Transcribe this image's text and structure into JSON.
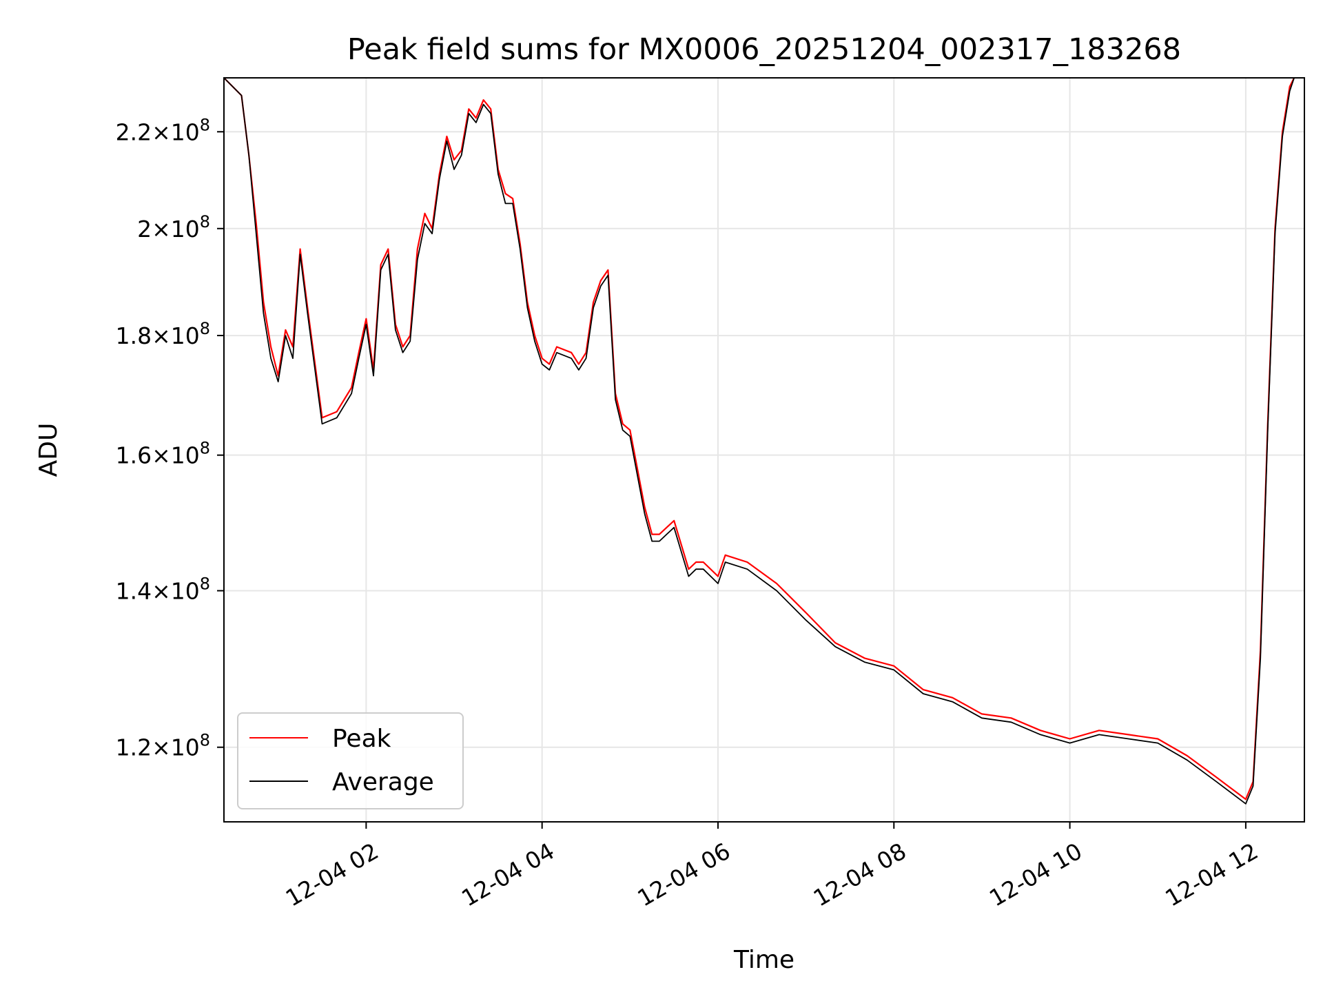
{
  "chart_data": {
    "type": "line",
    "title": "Peak field sums for MX0006_20251204_002317_183268",
    "xlabel": "Time",
    "ylabel": "ADU",
    "x_tick_labels": [
      "12-04 02",
      "12-04 04",
      "12-04 06",
      "12-04 08",
      "12-04 10",
      "12-04 12"
    ],
    "x_ticks": [
      "2025-12-04T02:00",
      "2025-12-04T04:00",
      "2025-12-04T06:00",
      "2025-12-04T08:00",
      "2025-12-04T10:00",
      "2025-12-04T12:00"
    ],
    "xlim": [
      "2025-12-04T00:23",
      "2025-12-04T12:40"
    ],
    "y_scale": "log",
    "y_ticks": [
      120000000,
      140000000,
      160000000,
      180000000,
      200000000,
      220000000
    ],
    "y_tick_mantissa": [
      "1.2",
      "1.4",
      "1.6",
      "1.8",
      "2",
      "2.2"
    ],
    "y_tick_sep": "×10",
    "y_tick_exp": "8",
    "ylim": [
      111500000,
      232000000
    ],
    "grid": true,
    "legend_position": "lower-left",
    "colors": {
      "peak": "#ff0000",
      "average": "#000000"
    },
    "series": [
      {
        "name": "Peak",
        "x": [
          "2025-12-04T00:23",
          "2025-12-04T00:35",
          "2025-12-04T00:40",
          "2025-12-04T00:45",
          "2025-12-04T00:50",
          "2025-12-04T00:55",
          "2025-12-04T01:00",
          "2025-12-04T01:05",
          "2025-12-04T01:10",
          "2025-12-04T01:15",
          "2025-12-04T01:20",
          "2025-12-04T01:30",
          "2025-12-04T01:40",
          "2025-12-04T01:45",
          "2025-12-04T01:50",
          "2025-12-04T01:55",
          "2025-12-04T02:00",
          "2025-12-04T02:05",
          "2025-12-04T02:10",
          "2025-12-04T02:15",
          "2025-12-04T02:20",
          "2025-12-04T02:25",
          "2025-12-04T02:30",
          "2025-12-04T02:35",
          "2025-12-04T02:40",
          "2025-12-04T02:45",
          "2025-12-04T02:50",
          "2025-12-04T02:55",
          "2025-12-04T03:00",
          "2025-12-04T03:05",
          "2025-12-04T03:10",
          "2025-12-04T03:15",
          "2025-12-04T03:20",
          "2025-12-04T03:25",
          "2025-12-04T03:30",
          "2025-12-04T03:35",
          "2025-12-04T03:40",
          "2025-12-04T03:45",
          "2025-12-04T03:50",
          "2025-12-04T03:55",
          "2025-12-04T04:00",
          "2025-12-04T04:05",
          "2025-12-04T04:10",
          "2025-12-04T04:20",
          "2025-12-04T04:25",
          "2025-12-04T04:30",
          "2025-12-04T04:35",
          "2025-12-04T04:40",
          "2025-12-04T04:45",
          "2025-12-04T04:50",
          "2025-12-04T04:55",
          "2025-12-04T05:00",
          "2025-12-04T05:10",
          "2025-12-04T05:15",
          "2025-12-04T05:20",
          "2025-12-04T05:25",
          "2025-12-04T05:30",
          "2025-12-04T05:40",
          "2025-12-04T05:45",
          "2025-12-04T05:50",
          "2025-12-04T06:00",
          "2025-12-04T06:05",
          "2025-12-04T06:20",
          "2025-12-04T06:40",
          "2025-12-04T07:00",
          "2025-12-04T07:20",
          "2025-12-04T07:40",
          "2025-12-04T08:00",
          "2025-12-04T08:20",
          "2025-12-04T08:40",
          "2025-12-04T09:00",
          "2025-12-04T09:20",
          "2025-12-04T09:40",
          "2025-12-04T10:00",
          "2025-12-04T10:20",
          "2025-12-04T10:40",
          "2025-12-04T11:00",
          "2025-12-04T11:20",
          "2025-12-04T11:40",
          "2025-12-04T12:00",
          "2025-12-04T12:05",
          "2025-12-04T12:10",
          "2025-12-04T12:15",
          "2025-12-04T12:20",
          "2025-12-04T12:25",
          "2025-12-04T12:30",
          "2025-12-04T12:33"
        ],
        "values": [
          232000000,
          228000000,
          215000000,
          201000000,
          186000000,
          178000000,
          173000000,
          181000000,
          178000000,
          196000000,
          185000000,
          166000000,
          167000000,
          169000000,
          171000000,
          177000000,
          183000000,
          174000000,
          193000000,
          196000000,
          182000000,
          178000000,
          180000000,
          196000000,
          203000000,
          200000000,
          211000000,
          219000000,
          214000000,
          216000000,
          225000000,
          223000000,
          227000000,
          225000000,
          212000000,
          207000000,
          206000000,
          197000000,
          186000000,
          180000000,
          176000000,
          175000000,
          178000000,
          177000000,
          175000000,
          177000000,
          186000000,
          190000000,
          192000000,
          170000000,
          165000000,
          164000000,
          152000000,
          148000000,
          148000000,
          149000000,
          150000000,
          143000000,
          144000000,
          144000000,
          142000000,
          145000000,
          144000000,
          141000000,
          137000000,
          133000000,
          131000000,
          130000000,
          127000000,
          126000000,
          124000000,
          123500000,
          122000000,
          121000000,
          122000000,
          121500000,
          121000000,
          119000000,
          116500000,
          114000000,
          116000000,
          132000000,
          165000000,
          200000000,
          220000000,
          230000000,
          232000000
        ]
      },
      {
        "name": "Average",
        "x": [
          "2025-12-04T00:23",
          "2025-12-04T00:35",
          "2025-12-04T00:40",
          "2025-12-04T00:45",
          "2025-12-04T00:50",
          "2025-12-04T00:55",
          "2025-12-04T01:00",
          "2025-12-04T01:05",
          "2025-12-04T01:10",
          "2025-12-04T01:15",
          "2025-12-04T01:20",
          "2025-12-04T01:30",
          "2025-12-04T01:40",
          "2025-12-04T01:45",
          "2025-12-04T01:50",
          "2025-12-04T01:55",
          "2025-12-04T02:00",
          "2025-12-04T02:05",
          "2025-12-04T02:10",
          "2025-12-04T02:15",
          "2025-12-04T02:20",
          "2025-12-04T02:25",
          "2025-12-04T02:30",
          "2025-12-04T02:35",
          "2025-12-04T02:40",
          "2025-12-04T02:45",
          "2025-12-04T02:50",
          "2025-12-04T02:55",
          "2025-12-04T03:00",
          "2025-12-04T03:05",
          "2025-12-04T03:10",
          "2025-12-04T03:15",
          "2025-12-04T03:20",
          "2025-12-04T03:25",
          "2025-12-04T03:30",
          "2025-12-04T03:35",
          "2025-12-04T03:40",
          "2025-12-04T03:45",
          "2025-12-04T03:50",
          "2025-12-04T03:55",
          "2025-12-04T04:00",
          "2025-12-04T04:05",
          "2025-12-04T04:10",
          "2025-12-04T04:20",
          "2025-12-04T04:25",
          "2025-12-04T04:30",
          "2025-12-04T04:35",
          "2025-12-04T04:40",
          "2025-12-04T04:45",
          "2025-12-04T04:50",
          "2025-12-04T04:55",
          "2025-12-04T05:00",
          "2025-12-04T05:10",
          "2025-12-04T05:15",
          "2025-12-04T05:20",
          "2025-12-04T05:25",
          "2025-12-04T05:30",
          "2025-12-04T05:40",
          "2025-12-04T05:45",
          "2025-12-04T05:50",
          "2025-12-04T06:00",
          "2025-12-04T06:05",
          "2025-12-04T06:20",
          "2025-12-04T06:40",
          "2025-12-04T07:00",
          "2025-12-04T07:20",
          "2025-12-04T07:40",
          "2025-12-04T08:00",
          "2025-12-04T08:20",
          "2025-12-04T08:40",
          "2025-12-04T09:00",
          "2025-12-04T09:20",
          "2025-12-04T09:40",
          "2025-12-04T10:00",
          "2025-12-04T10:20",
          "2025-12-04T10:40",
          "2025-12-04T11:00",
          "2025-12-04T11:20",
          "2025-12-04T11:40",
          "2025-12-04T12:00",
          "2025-12-04T12:05",
          "2025-12-04T12:10",
          "2025-12-04T12:15",
          "2025-12-04T12:20",
          "2025-12-04T12:25",
          "2025-12-04T12:30",
          "2025-12-04T12:33"
        ],
        "values": [
          232000000,
          228000000,
          215000000,
          199000000,
          184000000,
          176000000,
          172000000,
          180000000,
          176000000,
          195000000,
          184000000,
          165000000,
          166000000,
          168000000,
          170000000,
          176000000,
          182000000,
          173000000,
          192000000,
          195000000,
          181000000,
          177000000,
          179000000,
          194000000,
          201000000,
          199000000,
          210000000,
          218000000,
          212000000,
          215000000,
          224000000,
          222000000,
          226000000,
          224000000,
          211000000,
          205000000,
          205000000,
          196000000,
          185000000,
          179000000,
          175000000,
          174000000,
          177000000,
          176000000,
          174000000,
          176000000,
          185000000,
          189000000,
          191000000,
          169000000,
          164000000,
          163000000,
          151000000,
          147000000,
          147000000,
          148000000,
          149000000,
          142000000,
          143000000,
          143000000,
          141000000,
          144000000,
          143000000,
          140000000,
          136000000,
          132500000,
          130500000,
          129500000,
          126500000,
          125500000,
          123500000,
          123000000,
          121500000,
          120500000,
          121500000,
          121000000,
          120500000,
          118500000,
          116000000,
          113500000,
          115500000,
          131000000,
          164000000,
          199000000,
          219000000,
          229000000,
          232000000
        ]
      }
    ]
  }
}
